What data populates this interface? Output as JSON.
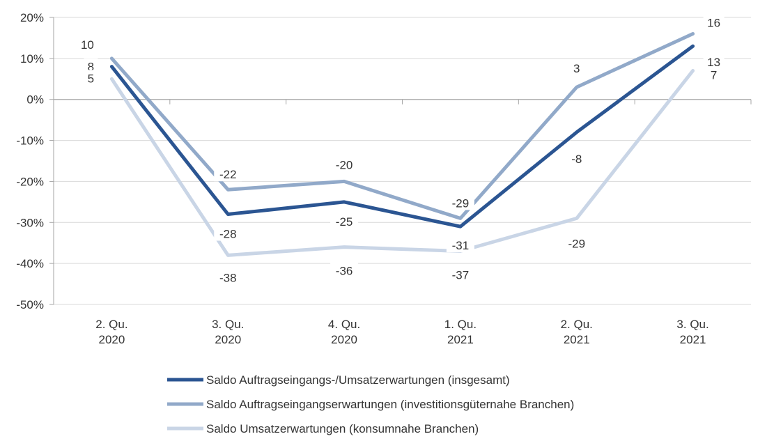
{
  "chart_data": {
    "type": "line",
    "categories": [
      "2. Qu. 2020",
      "3. Qu. 2020",
      "4. Qu. 2020",
      "1. Qu. 2021",
      "2. Qu. 2021",
      "3. Qu. 2021"
    ],
    "category_lines": [
      [
        "2. Qu.",
        "2020"
      ],
      [
        "3. Qu.",
        "2020"
      ],
      [
        "4. Qu.",
        "2020"
      ],
      [
        "1. Qu.",
        "2021"
      ],
      [
        "2. Qu.",
        "2021"
      ],
      [
        "3. Qu.",
        "2021"
      ]
    ],
    "series": [
      {
        "name": "Saldo Auftragseingangs-/Umsatzerwartungen (insgesamt)",
        "values": [
          8,
          -28,
          -25,
          -31,
          -8,
          13
        ],
        "color": "#2b5592"
      },
      {
        "name": "Saldo Auftragseingangserwartungen (investitionsgüternahe Branchen)",
        "values": [
          10,
          -22,
          -20,
          -29,
          3,
          16
        ],
        "color": "#91a9c9"
      },
      {
        "name": "Saldo Umsatzerwartungen (konsumnahe Branchen)",
        "values": [
          5,
          -38,
          -36,
          -37,
          -29,
          7
        ],
        "color": "#c9d5e6"
      }
    ],
    "ylim": [
      -50,
      20
    ],
    "yticks": [
      20,
      10,
      0,
      -10,
      -20,
      -30,
      -40,
      -50
    ],
    "ytick_labels": [
      "20%",
      "10%",
      "0%",
      "-10%",
      "-20%",
      "-30%",
      "-40%",
      "-50%"
    ],
    "grid": true,
    "legend_position": "bottom",
    "xlabel": "",
    "ylabel": "",
    "title": ""
  }
}
